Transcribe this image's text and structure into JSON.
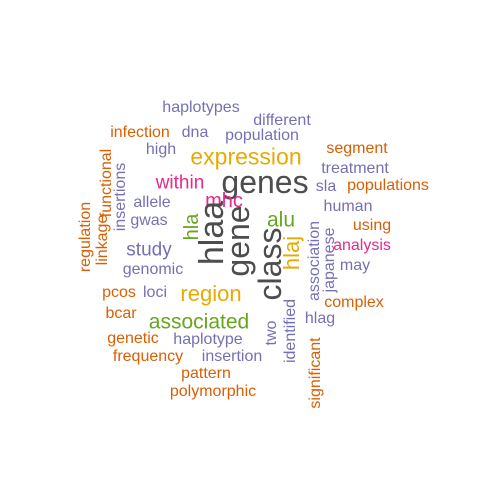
{
  "palette": {
    "gray": "#4d4d4d",
    "purple": "#7570b3",
    "orange": "#d95f02",
    "magenta": "#e7298a",
    "gold": "#e6ab02",
    "green": "#66a61e"
  },
  "words": [
    {
      "text": "haplotypes",
      "color": "purple",
      "vertical": false
    },
    {
      "text": "different",
      "color": "purple",
      "vertical": false
    },
    {
      "text": "infection",
      "color": "orange",
      "vertical": false
    },
    {
      "text": "dna",
      "color": "purple",
      "vertical": false
    },
    {
      "text": "population",
      "color": "purple",
      "vertical": false
    },
    {
      "text": "segment",
      "color": "orange",
      "vertical": false
    },
    {
      "text": "high",
      "color": "purple",
      "vertical": false
    },
    {
      "text": "expression",
      "color": "gold",
      "vertical": false
    },
    {
      "text": "treatment",
      "color": "purple",
      "vertical": false
    },
    {
      "text": "within",
      "color": "magenta",
      "vertical": false
    },
    {
      "text": "genes",
      "color": "gray",
      "vertical": false
    },
    {
      "text": "sla",
      "color": "purple",
      "vertical": false
    },
    {
      "text": "populations",
      "color": "orange",
      "vertical": false
    },
    {
      "text": "allele",
      "color": "purple",
      "vertical": false
    },
    {
      "text": "mhc",
      "color": "magenta",
      "vertical": false
    },
    {
      "text": "human",
      "color": "purple",
      "vertical": false
    },
    {
      "text": "gwas",
      "color": "purple",
      "vertical": false
    },
    {
      "text": "alu",
      "color": "green",
      "vertical": false
    },
    {
      "text": "using",
      "color": "orange",
      "vertical": false
    },
    {
      "text": "study",
      "color": "purple",
      "vertical": false
    },
    {
      "text": "analysis",
      "color": "magenta",
      "vertical": false
    },
    {
      "text": "may",
      "color": "purple",
      "vertical": false
    },
    {
      "text": "genomic",
      "color": "purple",
      "vertical": false
    },
    {
      "text": "pcos",
      "color": "orange",
      "vertical": false
    },
    {
      "text": "loci",
      "color": "purple",
      "vertical": false
    },
    {
      "text": "region",
      "color": "gold",
      "vertical": false
    },
    {
      "text": "complex",
      "color": "orange",
      "vertical": false
    },
    {
      "text": "bcar",
      "color": "orange",
      "vertical": false
    },
    {
      "text": "associated",
      "color": "green",
      "vertical": false
    },
    {
      "text": "hlag",
      "color": "purple",
      "vertical": false
    },
    {
      "text": "genetic",
      "color": "orange",
      "vertical": false
    },
    {
      "text": "haplotype",
      "color": "purple",
      "vertical": false
    },
    {
      "text": "frequency",
      "color": "orange",
      "vertical": false
    },
    {
      "text": "insertion",
      "color": "purple",
      "vertical": false
    },
    {
      "text": "pattern",
      "color": "orange",
      "vertical": false
    },
    {
      "text": "polymorphic",
      "color": "orange",
      "vertical": false
    },
    {
      "text": "functional",
      "color": "orange",
      "vertical": true
    },
    {
      "text": "insertions",
      "color": "purple",
      "vertical": true
    },
    {
      "text": "regulation",
      "color": "orange",
      "vertical": true
    },
    {
      "text": "linkage",
      "color": "orange",
      "vertical": true
    },
    {
      "text": "hla",
      "color": "green",
      "vertical": true
    },
    {
      "text": "hlaa",
      "color": "gray",
      "vertical": true
    },
    {
      "text": "gene",
      "color": "gray",
      "vertical": true
    },
    {
      "text": "class",
      "color": "gray",
      "vertical": true
    },
    {
      "text": "hlaj",
      "color": "gold",
      "vertical": true
    },
    {
      "text": "two",
      "color": "purple",
      "vertical": true
    },
    {
      "text": "identified",
      "color": "purple",
      "vertical": true
    },
    {
      "text": "association",
      "color": "purple",
      "vertical": true
    },
    {
      "text": "japanese",
      "color": "purple",
      "vertical": true
    },
    {
      "text": "significant",
      "color": "orange",
      "vertical": true
    }
  ]
}
